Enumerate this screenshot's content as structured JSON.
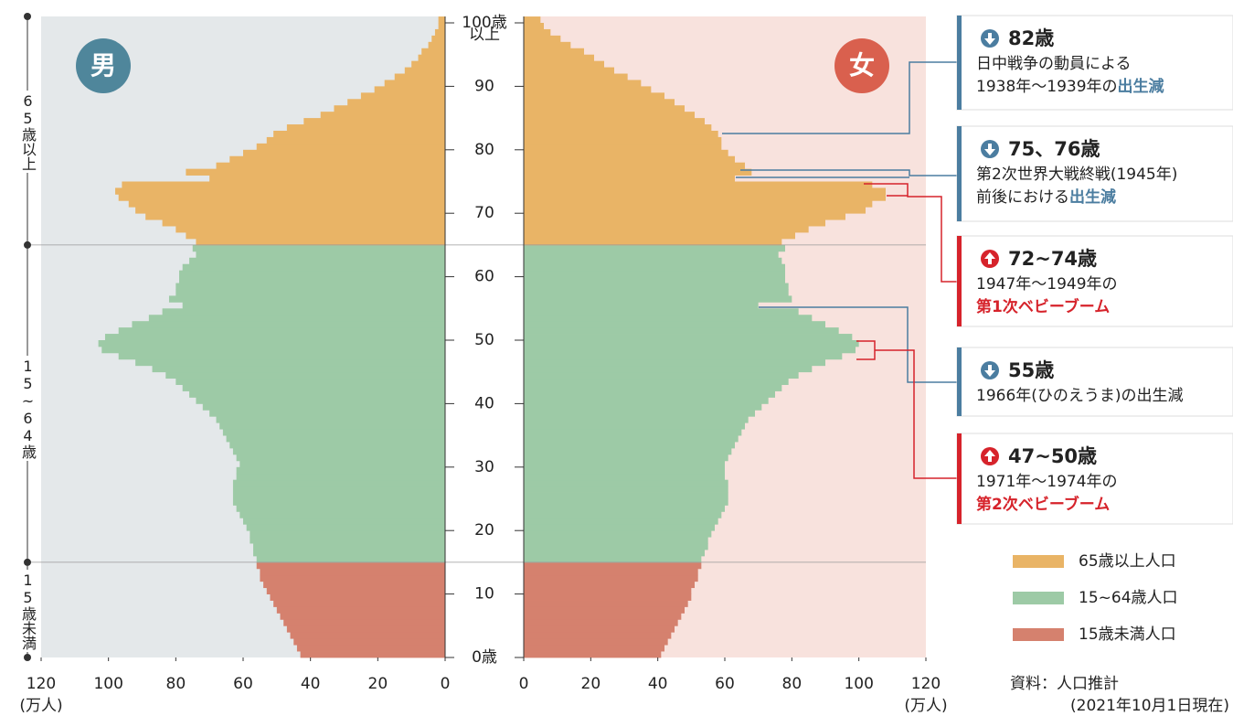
{
  "chart_data": {
    "type": "pyramid",
    "categories_axis": {
      "ylim": [
        0,
        100
      ],
      "yticks": [
        {
          "value": 0,
          "label": "0歳"
        },
        10,
        20,
        30,
        40,
        50,
        60,
        70,
        80,
        90,
        {
          "value": 100,
          "label": "100歳"
        }
      ],
      "top_note": "以上"
    },
    "x_unit": "(万人)",
    "male": {
      "name": "男",
      "badge_color": "#4f869b",
      "background": "#e4e8ea",
      "xlim": [
        0,
        120
      ],
      "xticks": [
        120,
        100,
        80,
        60,
        40,
        20,
        0
      ],
      "values": [
        43,
        44,
        45,
        46,
        47,
        48,
        49,
        50,
        51,
        52,
        53,
        54,
        55,
        55,
        56,
        56,
        57,
        57,
        58,
        58,
        59,
        60,
        61,
        62,
        63,
        63,
        63,
        63,
        62,
        62,
        61,
        62,
        63,
        64,
        65,
        66,
        67,
        68,
        70,
        72,
        74,
        76,
        78,
        80,
        83,
        87,
        92,
        97,
        102,
        103,
        101,
        97,
        93,
        88,
        84,
        78,
        82,
        80,
        80,
        79,
        79,
        78,
        76,
        74,
        75,
        74,
        77,
        80,
        84,
        89,
        92,
        94,
        97,
        98,
        96,
        70,
        77,
        68,
        64,
        60,
        56,
        53,
        51,
        47,
        42,
        37,
        33,
        29,
        25,
        21,
        18,
        15,
        12,
        10,
        8,
        7,
        5,
        4,
        3,
        2,
        2
      ]
    },
    "female": {
      "name": "女",
      "badge_color": "#d9604e",
      "background": "#f8e2dd",
      "xlim": [
        0,
        120
      ],
      "xticks": [
        0,
        20,
        40,
        60,
        80,
        100,
        120
      ],
      "values": [
        41,
        42,
        43,
        44,
        45,
        46,
        47,
        48,
        49,
        50,
        50,
        51,
        52,
        52,
        53,
        53,
        54,
        55,
        55,
        56,
        57,
        58,
        59,
        60,
        61,
        61,
        61,
        61,
        60,
        60,
        60,
        61,
        62,
        63,
        64,
        65,
        66,
        67,
        69,
        71,
        73,
        75,
        77,
        79,
        82,
        86,
        90,
        95,
        99,
        100,
        98,
        94,
        90,
        86,
        82,
        70,
        80,
        79,
        79,
        78,
        78,
        78,
        77,
        76,
        78,
        77,
        81,
        85,
        90,
        96,
        102,
        104,
        108,
        108,
        104,
        63,
        68,
        66,
        63,
        61,
        59,
        59,
        58,
        56,
        54,
        51,
        48,
        45,
        42,
        38,
        35,
        31,
        27,
        24,
        21,
        18,
        14,
        11,
        8,
        6,
        5
      ]
    },
    "groups": [
      {
        "name": "65歳以上人口",
        "side_label": "65歳以上",
        "color": "#e9b466",
        "from": 65,
        "to": 100
      },
      {
        "name": "15~64歳人口",
        "side_label": "15~64歳",
        "color": "#9dcaa6",
        "from": 15,
        "to": 64
      },
      {
        "name": "15歳未満人口",
        "side_label": "15歳未満",
        "color": "#d5816e",
        "from": 0,
        "to": 14
      }
    ],
    "annotations": [
      {
        "direction": "down",
        "title": "82歳",
        "lines": [
          [
            {
              "text": "日中戦争の動員による"
            }
          ],
          [
            {
              "text": "1938年～1939年の"
            },
            {
              "text": "出生減",
              "emphasis": true
            }
          ]
        ]
      },
      {
        "direction": "down",
        "title": "75、76歳",
        "lines": [
          [
            {
              "text": "第2次世界大戦終戦(1945年)"
            }
          ],
          [
            {
              "text": "前後における"
            },
            {
              "text": "出生減",
              "emphasis": true
            }
          ]
        ]
      },
      {
        "direction": "up",
        "title": "72~74歳",
        "lines": [
          [
            {
              "text": "1947年～1949年の"
            }
          ],
          [
            {
              "text": "第1次ベビーブーム",
              "emphasis": true
            }
          ]
        ]
      },
      {
        "direction": "down",
        "title": "55歳",
        "lines": [
          [
            {
              "text": "1966年(ひのえうま)の出生減"
            }
          ]
        ]
      },
      {
        "direction": "up",
        "title": "47~50歳",
        "lines": [
          [
            {
              "text": "1971年～1974年の"
            }
          ],
          [
            {
              "text": "第2次ベビーブーム",
              "emphasis": true
            }
          ]
        ]
      }
    ],
    "source": [
      "資料：人口推計",
      "(2021年10月1日現在)"
    ]
  }
}
